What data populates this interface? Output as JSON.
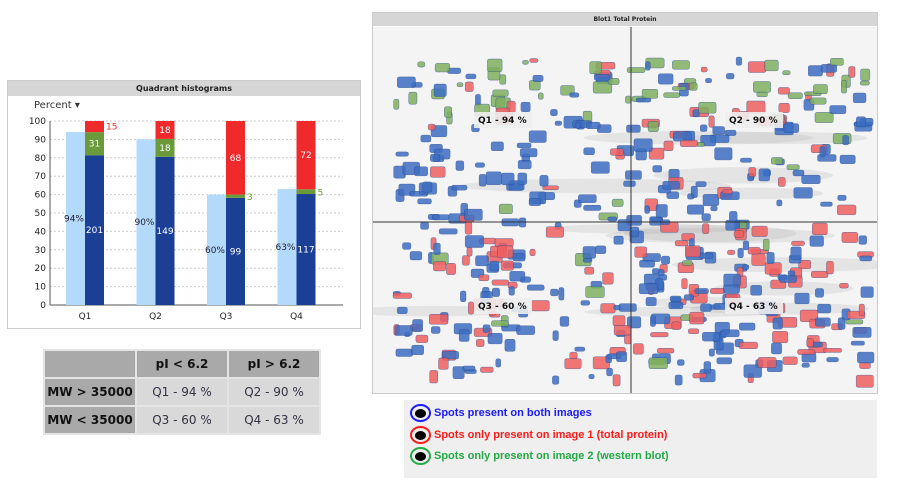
{
  "chart_panel": {
    "title": "Quadrant histograms",
    "mode_selector": "Percent"
  },
  "chart_data": {
    "type": "bar",
    "title": "Quadrant histograms",
    "categories": [
      "Q1",
      "Q2",
      "Q3",
      "Q4"
    ],
    "ylim": [
      0,
      100
    ],
    "yticks": [
      0,
      10,
      20,
      30,
      40,
      50,
      60,
      70,
      80,
      90,
      100
    ],
    "grid": true,
    "percent_series": {
      "values": [
        94,
        90,
        60,
        63
      ],
      "labels": [
        "94%",
        "90%",
        "60%",
        "63%"
      ],
      "color": "#b3d9fb"
    },
    "count_series": [
      {
        "values": [
          201,
          149,
          99,
          117
        ],
        "color": "#1a3f94"
      },
      {
        "values": [
          31,
          18,
          3,
          5
        ],
        "color": "#6b9a3a"
      },
      {
        "values": [
          15,
          18,
          68,
          72
        ],
        "color": "#f02a2a"
      }
    ]
  },
  "table": {
    "headers": [
      "",
      "pI < 6.2",
      "pI > 6.2"
    ],
    "rows": [
      {
        "label": "MW > 35000",
        "cells": [
          "Q1 - 94 %",
          "Q2 - 90 %"
        ]
      },
      {
        "label": "MW < 35000",
        "cells": [
          "Q3 - 60 %",
          "Q4 - 63 %"
        ]
      }
    ]
  },
  "gel": {
    "title": "Blot1 Total Protein",
    "quadrant_labels": [
      "Q1 - 94 %",
      "Q2 - 90 %",
      "Q3 - 60 %",
      "Q4 - 63 %"
    ],
    "colors": {
      "both": "#3d6ec2",
      "image1": "#f06060",
      "image2": "#7fb060"
    }
  },
  "legend": {
    "items": [
      {
        "label": "Spots present on both images",
        "color": "#1a1aff"
      },
      {
        "label": "Spots only present on image 1 (total protein)",
        "color": "#ff1a1a"
      },
      {
        "label": "Spots only present on image 2 (western blot)",
        "color": "#22aa44"
      }
    ]
  }
}
